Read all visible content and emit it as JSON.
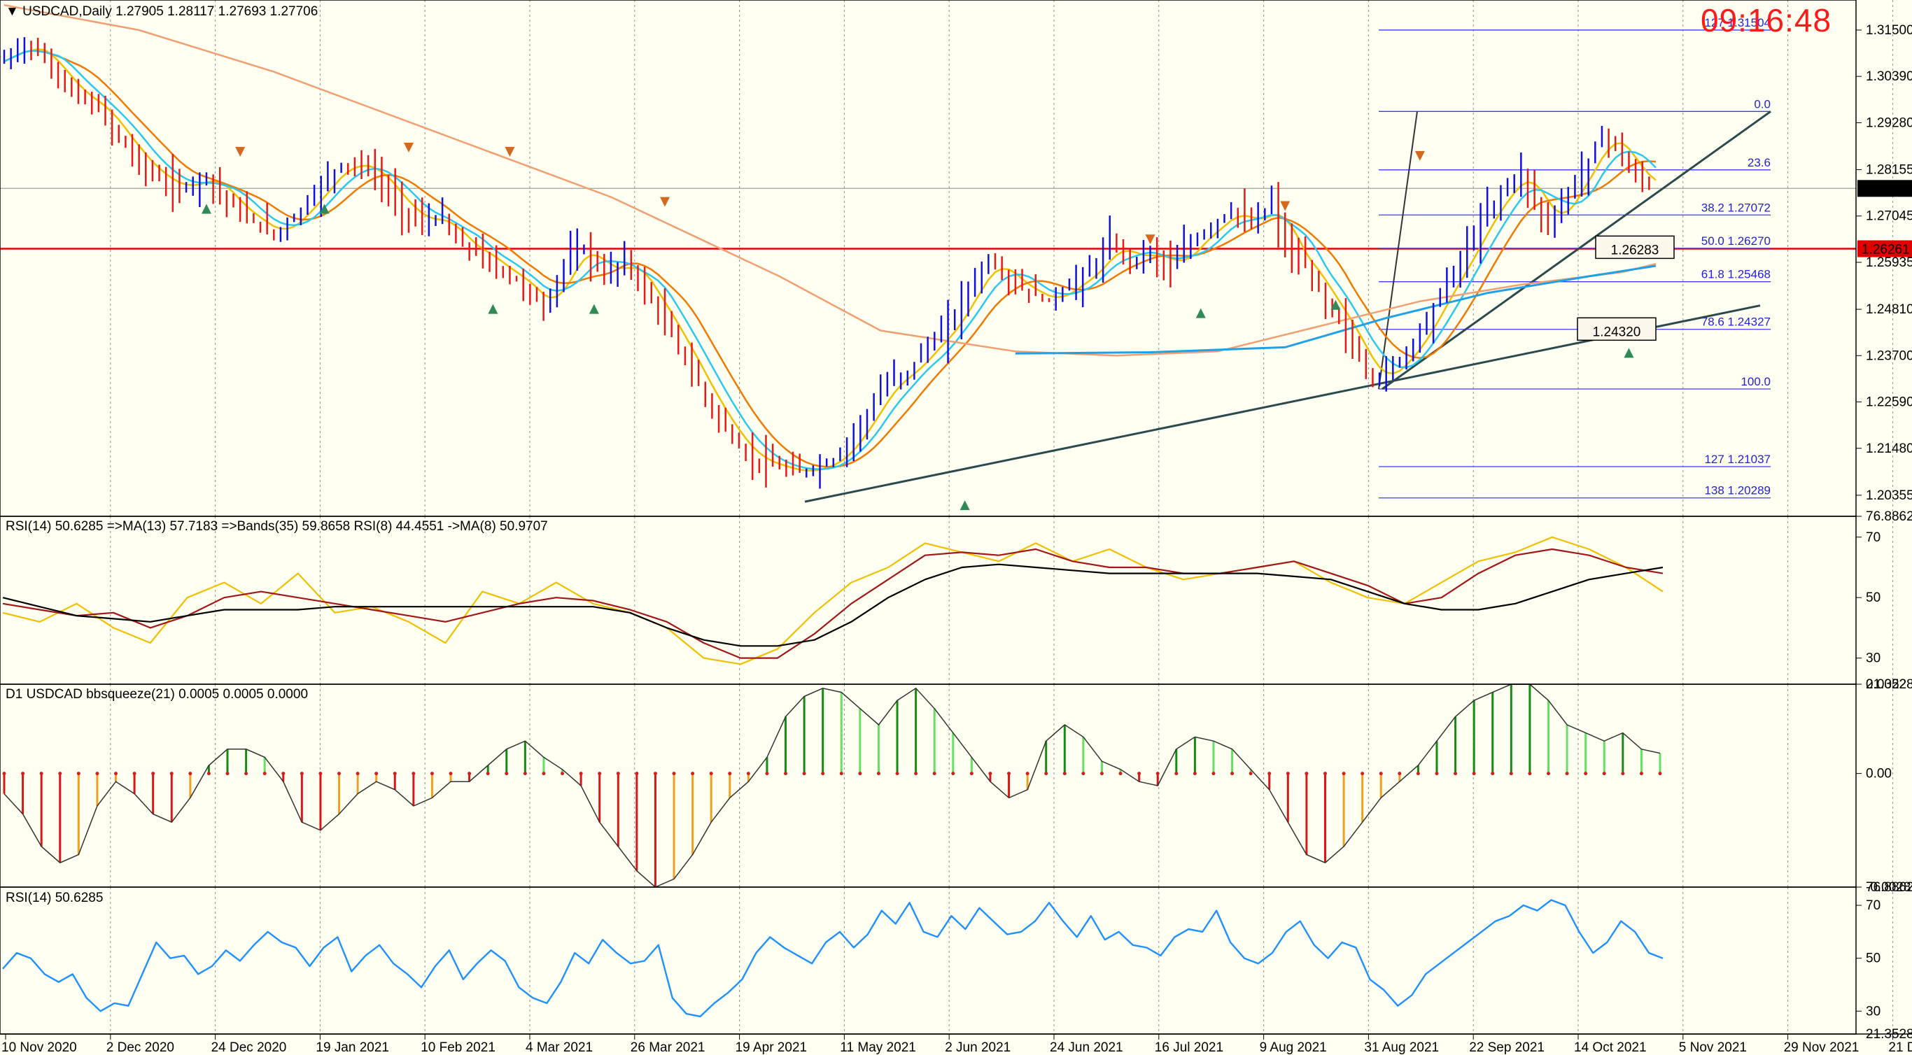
{
  "chart_data": [
    {
      "type": "candlestick",
      "symbol": "USDCAD",
      "timeframe": "Daily",
      "title": "USDCAD,Daily",
      "ohlc_header": {
        "open": "1.27905",
        "high": "1.28117",
        "low": "1.27693",
        "close": "1.27706"
      },
      "ylim": [
        1.1985,
        1.3222
      ],
      "y_ticks": [
        "1.31500",
        "1.30390",
        "1.29280",
        "1.28155",
        "1.27045",
        "1.25935",
        "1.24810",
        "1.23700",
        "1.22590",
        "1.21480",
        "1.20355"
      ],
      "x_ticks": [
        "10 Nov 2020",
        "2 Dec 2020",
        "24 Dec 2020",
        "19 Jan 2021",
        "10 Feb 2021",
        "4 Mar 2021",
        "26 Mar 2021",
        "19 Apr 2021",
        "11 May 2021",
        "2 Jun 2021",
        "24 Jun 2021",
        "16 Jul 2021",
        "9 Aug 2021",
        "31 Aug 2021",
        "22 Sep 2021",
        "14 Oct 2021",
        "5 Nov 2021",
        "29 Nov 2021",
        "21 Dec 2021"
      ],
      "current_price": "1.27706",
      "horizontal_level": "1.26261",
      "price_boxes": [
        "1.26283",
        "1.24320"
      ],
      "close_path": [
        [
          0,
          1.3075
        ],
        [
          6,
          1.312
        ],
        [
          12,
          1.308
        ],
        [
          20,
          1.3
        ],
        [
          28,
          1.296
        ],
        [
          36,
          1.287
        ],
        [
          44,
          1.28
        ],
        [
          52,
          1.277
        ],
        [
          60,
          1.28
        ],
        [
          66,
          1.274
        ],
        [
          72,
          1.27
        ],
        [
          80,
          1.266
        ],
        [
          88,
          1.272
        ],
        [
          94,
          1.278
        ],
        [
          100,
          1.283
        ],
        [
          108,
          1.282
        ],
        [
          114,
          1.276
        ],
        [
          118,
          1.272
        ],
        [
          124,
          1.269
        ],
        [
          130,
          1.27
        ],
        [
          134,
          1.264
        ],
        [
          140,
          1.262
        ],
        [
          146,
          1.258
        ],
        [
          152,
          1.255
        ],
        [
          156,
          1.252
        ],
        [
          160,
          1.248
        ],
        [
          166,
          1.259
        ],
        [
          172,
          1.263
        ],
        [
          178,
          1.256
        ],
        [
          184,
          1.26
        ],
        [
          188,
          1.255
        ],
        [
          192,
          1.25
        ],
        [
          198,
          1.242
        ],
        [
          204,
          1.233
        ],
        [
          210,
          1.224
        ],
        [
          216,
          1.217
        ],
        [
          220,
          1.213
        ],
        [
          226,
          1.211
        ],
        [
          230,
          1.21
        ],
        [
          236,
          1.209
        ],
        [
          240,
          1.21
        ],
        [
          246,
          1.212
        ],
        [
          250,
          1.216
        ],
        [
          256,
          1.223
        ],
        [
          262,
          1.231
        ],
        [
          268,
          1.233
        ],
        [
          272,
          1.238
        ],
        [
          278,
          1.242
        ],
        [
          282,
          1.247
        ],
        [
          286,
          1.253
        ],
        [
          292,
          1.26
        ],
        [
          298,
          1.255
        ],
        [
          304,
          1.252
        ],
        [
          310,
          1.25
        ],
        [
          316,
          1.254
        ],
        [
          322,
          1.257
        ],
        [
          328,
          1.264
        ],
        [
          334,
          1.26
        ],
        [
          340,
          1.262
        ],
        [
          346,
          1.258
        ],
        [
          352,
          1.264
        ],
        [
          358,
          1.268
        ],
        [
          364,
          1.272
        ],
        [
          370,
          1.268
        ],
        [
          376,
          1.274
        ],
        [
          380,
          1.263
        ],
        [
          386,
          1.258
        ],
        [
          392,
          1.25
        ],
        [
          398,
          1.243
        ],
        [
          402,
          1.236
        ],
        [
          406,
          1.231
        ],
        [
          410,
          1.233
        ],
        [
          416,
          1.238
        ],
        [
          420,
          1.243
        ],
        [
          426,
          1.252
        ],
        [
          432,
          1.26
        ],
        [
          436,
          1.266
        ],
        [
          440,
          1.272
        ],
        [
          446,
          1.278
        ],
        [
          450,
          1.281
        ],
        [
          454,
          1.274
        ],
        [
          458,
          1.268
        ],
        [
          464,
          1.276
        ],
        [
          470,
          1.284
        ],
        [
          474,
          1.29
        ],
        [
          478,
          1.288
        ],
        [
          482,
          1.281
        ],
        [
          486,
          1.279
        ],
        [
          490,
          1.2771
        ]
      ],
      "sma_slow": [
        [
          0,
          1.321
        ],
        [
          40,
          1.315
        ],
        [
          80,
          1.305
        ],
        [
          130,
          1.29
        ],
        [
          180,
          1.275
        ],
        [
          230,
          1.256
        ],
        [
          260,
          1.243
        ],
        [
          300,
          1.238
        ],
        [
          330,
          1.237
        ],
        [
          360,
          1.238
        ],
        [
          390,
          1.244
        ],
        [
          420,
          1.25
        ],
        [
          450,
          1.254
        ],
        [
          480,
          1.257
        ],
        [
          490,
          1.259
        ]
      ],
      "fibonacci": {
        "levels": [
          {
            "label": "127  1.31504",
            "value": 1.315
          },
          {
            "label": "0.0",
            "value": 1.2955
          },
          {
            "label": "23.6",
            "value": 1.2815
          },
          {
            "label": "38.2  1.27072",
            "value": 1.2707
          },
          {
            "label": "50.0  1.26270",
            "value": 1.2627
          },
          {
            "label": "61.8  1.25468",
            "value": 1.2547
          },
          {
            "label": "78.6  1.24327",
            "value": 1.2433
          },
          {
            "label": "100.0",
            "value": 1.229
          },
          {
            "label": "127  1.21037",
            "value": 1.2104
          },
          {
            "label": "138  1.20289",
            "value": 1.2029
          }
        ]
      }
    },
    {
      "type": "line",
      "title": "RSI(14) 50.6285  =>MA(13) 57.7183  =>Bands(35) 59.8658  RSI(8) 44.4551  ->MA(8) 50.9707",
      "ylim": [
        21.3528,
        76.8862
      ],
      "y_ticks": [
        "76.8862",
        "70",
        "50",
        "30",
        "21.3528"
      ],
      "series": [
        {
          "color": "#f0c000",
          "values": [
            45,
            42,
            48,
            40,
            35,
            50,
            55,
            48,
            58,
            45,
            47,
            42,
            35,
            52,
            48,
            55,
            48,
            45,
            40,
            30,
            28,
            33,
            45,
            55,
            60,
            68,
            65,
            62,
            68,
            62,
            66,
            60,
            56,
            58,
            60,
            62,
            55,
            50,
            48,
            55,
            62,
            65,
            70,
            66,
            60,
            52
          ]
        },
        {
          "color": "#a01818",
          "values": [
            48,
            46,
            44,
            45,
            40,
            44,
            50,
            52,
            50,
            48,
            46,
            44,
            42,
            45,
            48,
            50,
            49,
            46,
            42,
            35,
            30,
            30,
            38,
            48,
            56,
            64,
            65,
            64,
            66,
            62,
            60,
            60,
            58,
            58,
            60,
            62,
            58,
            54,
            48,
            50,
            58,
            64,
            66,
            64,
            60,
            58
          ]
        },
        {
          "color": "#000000",
          "values": [
            50,
            47,
            44,
            43,
            42,
            44,
            46,
            46,
            46,
            47,
            47,
            47,
            47,
            47,
            47,
            47,
            47,
            45,
            40,
            36,
            34,
            34,
            36,
            42,
            50,
            56,
            60,
            61,
            60,
            59,
            58,
            58,
            58,
            58,
            58,
            57,
            56,
            52,
            48,
            46,
            46,
            48,
            52,
            56,
            58,
            60
          ]
        }
      ]
    },
    {
      "type": "bar",
      "title": "D1 USDCAD bbsqueeze(21) 0.0005 0.0005 0.0000",
      "ylim": [
        -0.0028,
        0.0022
      ],
      "y_ticks": [
        "0.0022",
        "0.00",
        "-0.0028"
      ],
      "values": [
        -0.0005,
        -0.001,
        -0.0018,
        -0.0022,
        -0.002,
        -0.0008,
        -0.0002,
        -0.0005,
        -0.001,
        -0.0012,
        -0.0006,
        0.0002,
        0.0006,
        0.0006,
        0.0004,
        -0.0002,
        -0.0012,
        -0.0014,
        -0.001,
        -0.0005,
        -0.0002,
        -0.0004,
        -0.0008,
        -0.0006,
        -0.0002,
        -0.0002,
        0.0002,
        0.0006,
        0.0008,
        0.0004,
        0.0001,
        -0.0003,
        -0.0012,
        -0.0018,
        -0.0024,
        -0.0028,
        -0.0026,
        -0.002,
        -0.0012,
        -0.0006,
        -0.0002,
        0.0004,
        0.0014,
        0.0019,
        0.0021,
        0.002,
        0.0016,
        0.0012,
        0.0018,
        0.0021,
        0.0016,
        0.001,
        0.0004,
        -0.0002,
        -0.0006,
        -0.0004,
        0.0008,
        0.0012,
        0.0009,
        0.0003,
        0.0001,
        -0.0002,
        -0.0003,
        0.0006,
        0.0009,
        0.0008,
        0.0006,
        0.0001,
        -0.0004,
        -0.0012,
        -0.002,
        -0.0022,
        -0.0018,
        -0.0012,
        -0.0006,
        -0.0002,
        0.0002,
        0.0008,
        0.0014,
        0.0018,
        0.002,
        0.0022,
        0.0022,
        0.0018,
        0.0012,
        0.001,
        0.0008,
        0.001,
        0.0006,
        0.0005
      ]
    },
    {
      "type": "line",
      "title": "RSI(14) 50.6285",
      "ylim": [
        21.3528,
        76.8862
      ],
      "y_ticks": [
        "76.8862",
        "70",
        "50",
        "30",
        "21.3528"
      ],
      "series": [
        {
          "color": "#1e90ff",
          "values": [
            46,
            52,
            50,
            44,
            41,
            44,
            35,
            30,
            33,
            32,
            44,
            56,
            50,
            51,
            44,
            47,
            53,
            49,
            55,
            60,
            56,
            54,
            47,
            54,
            58,
            45,
            51,
            55,
            48,
            44,
            39,
            47,
            53,
            42,
            48,
            53,
            49,
            39,
            35,
            33,
            41,
            52,
            48,
            57,
            52,
            48,
            49,
            55,
            35,
            29,
            28,
            33,
            37,
            42,
            52,
            58,
            54,
            51,
            48,
            56,
            60,
            54,
            59,
            68,
            63,
            71,
            60,
            58,
            66,
            61,
            69,
            64,
            59,
            60,
            64,
            71,
            64,
            58,
            66,
            57,
            60,
            55,
            54,
            51,
            58,
            61,
            60,
            68,
            56,
            50,
            48,
            52,
            60,
            64,
            55,
            50,
            56,
            54,
            42,
            38,
            32,
            36,
            44,
            48,
            52,
            56,
            60,
            64,
            66,
            70,
            68,
            72,
            70,
            60,
            52,
            56,
            64,
            60,
            52,
            50
          ]
        }
      ]
    }
  ],
  "clock": "09:16:48"
}
